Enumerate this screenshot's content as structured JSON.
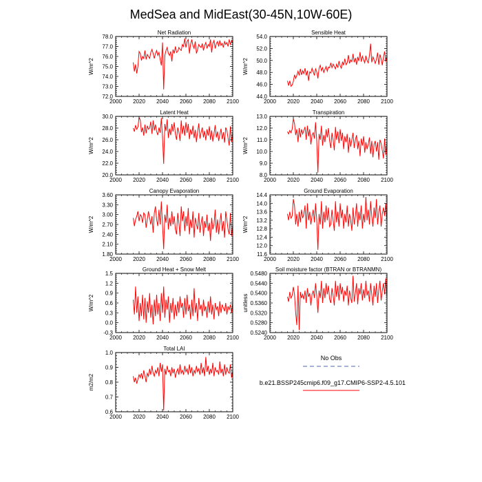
{
  "main_title": "MedSea and MidEast(30-45N,10W-60E)",
  "legend": {
    "obs_label": "No Obs",
    "obs_color": "#8899cc",
    "model_label": "b.e21.BSSP245cmip6.f09_g17.CMIP6-SSP2-4.5.101",
    "model_color": "#ff0000"
  },
  "chart_data": [
    {
      "type": "line",
      "title": "Net Radiation",
      "ylabel": "W/m^2",
      "xlim": [
        2000,
        2100
      ],
      "xticks": [
        "2000",
        "2020",
        "2040",
        "2060",
        "2080",
        "2100"
      ],
      "ylim": [
        72.0,
        78.0
      ],
      "yticks": [
        "72.0",
        "73.0",
        "74.0",
        "75.0",
        "76.0",
        "77.0",
        "78.0"
      ],
      "x_start": 2015,
      "values": [
        75.4,
        74.5,
        75.2,
        74.3,
        75.0,
        76.5,
        76.3,
        75.6,
        76.0,
        75.8,
        76.6,
        75.7,
        76.2,
        76.0,
        75.8,
        76.4,
        76.7,
        76.3,
        75.8,
        76.3,
        76.6,
        76.1,
        76.4,
        75.7,
        75.1,
        77.4,
        72.7,
        76.1,
        76.6,
        76.9,
        76.3,
        76.1,
        76.5,
        75.5,
        76.7,
        76.3,
        77.0,
        76.4,
        76.5,
        76.9,
        76.7,
        76.6,
        77.2,
        77.0,
        77.8,
        76.9,
        77.5,
        77.7,
        76.3,
        77.2,
        77.7,
        77.1,
        76.8,
        77.5,
        76.3,
        76.7,
        77.2,
        77.0,
        76.9,
        77.3,
        76.6,
        77.1,
        77.4,
        76.8,
        77.2,
        77.0,
        77.7,
        76.4,
        77.3,
        77.6,
        76.8,
        77.3,
        77.5,
        77.0,
        77.6,
        77.1,
        77.3,
        76.9,
        77.5,
        77.2,
        77.4,
        77.0,
        77.7,
        77.2,
        77.6,
        77.3
      ]
    },
    {
      "type": "line",
      "title": "Sensible Heat",
      "ylabel": "W/m^2",
      "xlim": [
        2000,
        2100
      ],
      "xticks": [
        "2000",
        "2020",
        "2040",
        "2060",
        "2080",
        "2100"
      ],
      "ylim": [
        44.0,
        54.0
      ],
      "yticks": [
        "44.0",
        "46.0",
        "48.0",
        "50.0",
        "52.0",
        "54.0"
      ],
      "x_start": 2015,
      "values": [
        46.6,
        45.8,
        46.6,
        45.7,
        45.9,
        46.5,
        47.6,
        47.0,
        47.5,
        48.2,
        47.5,
        48.6,
        47.6,
        48.3,
        47.8,
        48.7,
        47.5,
        48.3,
        46.6,
        48.1,
        47.9,
        48.7,
        48.1,
        47.5,
        48.6,
        48.1,
        47.0,
        48.7,
        49.2,
        48.3,
        48.8,
        48.0,
        48.5,
        49.0,
        48.2,
        48.9,
        48.8,
        49.6,
        48.8,
        49.4,
        49.0,
        48.6,
        49.4,
        48.8,
        49.9,
        49.1,
        48.7,
        49.8,
        49.2,
        50.3,
        49.3,
        49.6,
        50.9,
        49.5,
        50.1,
        49.8,
        51.1,
        49.7,
        50.4,
        49.3,
        50.6,
        49.9,
        51.4,
        49.8,
        50.7,
        50.1,
        49.6,
        50.8,
        50.0,
        49.6,
        50.8,
        52.8,
        49.7,
        50.6,
        50.1,
        49.5,
        50.2,
        51.3,
        49.3,
        51.0,
        50.3,
        49.2,
        50.6,
        51.5,
        49.8,
        50.9
      ]
    },
    {
      "type": "line",
      "title": "Latent Heat",
      "ylabel": "W/m^2",
      "xlim": [
        2000,
        2100
      ],
      "xticks": [
        "2000",
        "2020",
        "2040",
        "2060",
        "2080",
        "2100"
      ],
      "ylim": [
        20.0,
        30.0
      ],
      "yticks": [
        "20.0",
        "22.0",
        "24.0",
        "26.0",
        "28.0",
        "30.0"
      ],
      "x_start": 2015,
      "values": [
        28.0,
        27.4,
        28.5,
        27.8,
        28.2,
        29.8,
        29.4,
        27.3,
        28.1,
        26.7,
        28.6,
        27.1,
        28.4,
        27.8,
        28.0,
        29.1,
        27.0,
        29.3,
        27.6,
        28.6,
        27.4,
        26.8,
        28.1,
        27.2,
        29.7,
        26.5,
        21.9,
        28.7,
        27.5,
        29.5,
        26.3,
        27.9,
        26.8,
        28.7,
        27.4,
        29.0,
        27.0,
        26.0,
        28.1,
        27.3,
        25.8,
        29.3,
        27.0,
        28.4,
        26.7,
        29.0,
        27.2,
        28.7,
        26.1,
        27.8,
        26.9,
        28.4,
        26.3,
        27.7,
        25.6,
        27.4,
        28.8,
        26.2,
        27.3,
        28.1,
        26.4,
        27.5,
        25.9,
        27.8,
        26.7,
        28.3,
        26.0,
        27.6,
        25.7,
        27.0,
        28.5,
        26.4,
        27.4,
        25.8,
        26.9,
        27.9,
        26.1,
        27.3,
        25.5,
        28.1,
        27.6,
        26.3,
        25.0,
        28.3,
        25.6,
        27.4
      ]
    },
    {
      "type": "line",
      "title": "Transpiration",
      "ylabel": "W/m^2",
      "xlim": [
        2000,
        2100
      ],
      "xticks": [
        "2000",
        "2020",
        "2040",
        "2060",
        "2080",
        "2100"
      ],
      "ylim": [
        8.0,
        13.0
      ],
      "yticks": [
        "8.0",
        "9.0",
        "10.0",
        "11.0",
        "12.0",
        "13.0"
      ],
      "x_start": 2015,
      "values": [
        11.7,
        11.5,
        11.8,
        11.6,
        11.9,
        12.8,
        12.4,
        11.4,
        11.9,
        10.8,
        12.0,
        11.2,
        11.9,
        11.5,
        11.8,
        12.1,
        11.0,
        12.2,
        11.3,
        11.9,
        10.6,
        11.4,
        11.6,
        11.1,
        12.5,
        10.9,
        8.2,
        11.5,
        11.0,
        12.2,
        10.5,
        11.4,
        10.8,
        11.9,
        11.2,
        12.0,
        10.9,
        10.3,
        11.6,
        11.0,
        10.1,
        12.1,
        11.0,
        11.7,
        10.7,
        11.9,
        10.9,
        11.6,
        10.2,
        11.3,
        10.8,
        11.5,
        9.9,
        11.2,
        10.4,
        11.0,
        11.6,
        10.3,
        11.0,
        11.4,
        10.2,
        10.9,
        9.6,
        11.1,
        10.5,
        11.3,
        9.9,
        10.8,
        10.2,
        10.6,
        11.2,
        9.8,
        10.9,
        9.5,
        10.6,
        10.9,
        10.0,
        10.8,
        9.3,
        11.0,
        10.7,
        10.1,
        9.4,
        11.1,
        9.7,
        10.9
      ]
    },
    {
      "type": "line",
      "title": "Canopy Evaporation",
      "ylabel": "W/m^2",
      "xlim": [
        2000,
        2100
      ],
      "xticks": [
        "2000",
        "2020",
        "2040",
        "2060",
        "2080",
        "2100"
      ],
      "ylim": [
        1.8,
        3.6
      ],
      "yticks": [
        "1.80",
        "2.10",
        "2.40",
        "2.70",
        "3.00",
        "3.30",
        "3.60"
      ],
      "x_start": 2015,
      "values": [
        2.9,
        2.65,
        2.85,
        2.95,
        3.1,
        2.8,
        3.0,
        2.95,
        2.75,
        3.05,
        3.0,
        2.6,
        2.85,
        3.1,
        2.9,
        2.7,
        2.95,
        2.45,
        3.05,
        3.25,
        2.85,
        2.65,
        3.15,
        2.7,
        3.4,
        2.7,
        1.95,
        3.0,
        2.75,
        3.3,
        2.55,
        2.9,
        2.65,
        3.1,
        2.7,
        2.95,
        2.55,
        2.4,
        3.05,
        2.75,
        2.35,
        3.25,
        2.8,
        3.1,
        2.5,
        2.95,
        2.65,
        3.2,
        2.4,
        2.85,
        2.6,
        3.1,
        2.3,
        2.9,
        2.7,
        2.55,
        3.05,
        2.45,
        2.75,
        2.95,
        2.35,
        2.8,
        2.6,
        3.0,
        2.5,
        2.75,
        2.2,
        2.9,
        2.55,
        2.7,
        3.15,
        2.45,
        2.85,
        2.4,
        2.75,
        3.05,
        2.5,
        2.8,
        2.3,
        3.1,
        2.85,
        2.55,
        2.4,
        3.05,
        2.35,
        2.7
      ]
    },
    {
      "type": "line",
      "title": "Ground Evaporation",
      "ylabel": "W/m^2",
      "xlim": [
        2000,
        2100
      ],
      "xticks": [
        "2000",
        "2020",
        "2040",
        "2060",
        "2080",
        "2100"
      ],
      "ylim": [
        11.6,
        14.4
      ],
      "yticks": [
        "11.6",
        "12.0",
        "12.4",
        "12.8",
        "13.2",
        "13.6",
        "14.0",
        "14.4"
      ],
      "x_start": 2015,
      "values": [
        13.5,
        13.2,
        13.6,
        13.3,
        13.4,
        14.2,
        13.9,
        13.0,
        13.5,
        12.9,
        13.6,
        13.1,
        13.7,
        13.3,
        13.5,
        13.9,
        12.8,
        14.0,
        13.2,
        13.6,
        13.0,
        13.4,
        13.7,
        13.1,
        14.0,
        13.2,
        11.8,
        13.5,
        13.0,
        14.1,
        12.8,
        13.6,
        13.1,
        13.9,
        13.2,
        13.8,
        12.9,
        13.0,
        13.7,
        13.2,
        12.7,
        14.1,
        13.1,
        13.6,
        12.9,
        14.0,
        13.3,
        13.7,
        12.8,
        13.5,
        13.1,
        13.9,
        12.9,
        13.5,
        13.2,
        12.7,
        13.8,
        13.0,
        13.4,
        14.0,
        12.9,
        13.6,
        13.2,
        13.9,
        12.8,
        13.5,
        13.1,
        14.3,
        13.2,
        13.7,
        13.0,
        14.1,
        13.4,
        12.9,
        13.8,
        13.3,
        14.2,
        13.0,
        13.6,
        13.9,
        12.9,
        13.5,
        13.8,
        13.4,
        14.0,
        13.1
      ]
    },
    {
      "type": "line",
      "title": "Ground Heat + Snow Melt",
      "ylabel": "W/m^2",
      "xlim": [
        2000,
        2100
      ],
      "xticks": [
        "2000",
        "2020",
        "2040",
        "2060",
        "2080",
        "2100"
      ],
      "ylim": [
        -0.3,
        1.5
      ],
      "yticks": [
        "-0.3",
        "0.0",
        "0.3",
        "0.6",
        "0.9",
        "1.2",
        "1.5"
      ],
      "x_start": 2015,
      "values": [
        0.7,
        0.25,
        1.1,
        0.3,
        0.8,
        0.05,
        0.6,
        0.2,
        0.85,
        0.1,
        0.75,
        0.0,
        0.65,
        0.3,
        0.9,
        0.15,
        0.55,
        -0.05,
        0.7,
        0.2,
        0.85,
        0.25,
        0.6,
        0.05,
        0.9,
        0.3,
        1.1,
        0.15,
        0.7,
        0.4,
        0.8,
        0.0,
        0.6,
        0.3,
        0.75,
        0.1,
        0.55,
        0.2,
        0.65,
        0.3,
        0.8,
        0.45,
        0.6,
        0.15,
        0.75,
        0.25,
        0.85,
        0.35,
        0.55,
        0.1,
        0.7,
        0.2,
        1.05,
        0.3,
        0.6,
        0.05,
        0.75,
        0.4,
        0.55,
        0.2,
        0.7,
        0.35,
        0.5,
        0.15,
        0.65,
        0.3,
        0.8,
        0.25,
        0.55,
        0.1,
        0.6,
        0.4,
        0.5,
        0.2,
        0.65,
        0.3,
        0.55,
        0.45,
        0.35,
        0.6,
        0.25,
        0.5,
        0.4,
        0.55,
        0.3,
        0.6
      ]
    },
    {
      "type": "line",
      "title": "Soil moisture factor (BTRAN or BTRANMN)",
      "ylabel": "unitless",
      "xlim": [
        2000,
        2100
      ],
      "xticks": [
        "2000",
        "2020",
        "2040",
        "2060",
        "2080",
        "2100"
      ],
      "ylim": [
        0.524,
        0.548
      ],
      "yticks": [
        "0.5240",
        "0.5280",
        "0.5320",
        "0.5360",
        "0.5400",
        "0.5440",
        "0.5480"
      ],
      "x_start": 2015,
      "values": [
        0.5385,
        0.5365,
        0.5405,
        0.538,
        0.539,
        0.5425,
        0.5395,
        0.532,
        0.527,
        0.543,
        0.525,
        0.5405,
        0.538,
        0.5395,
        0.5375,
        0.541,
        0.536,
        0.542,
        0.5385,
        0.54,
        0.535,
        0.5395,
        0.541,
        0.538,
        0.544,
        0.539,
        0.532,
        0.541,
        0.538,
        0.545,
        0.536,
        0.542,
        0.538,
        0.544,
        0.5395,
        0.543,
        0.5375,
        0.536,
        0.542,
        0.539,
        0.535,
        0.545,
        0.5385,
        0.543,
        0.537,
        0.544,
        0.5395,
        0.5425,
        0.5365,
        0.541,
        0.539,
        0.543,
        0.535,
        0.541,
        0.538,
        0.536,
        0.547,
        0.5365,
        0.54,
        0.544,
        0.5355,
        0.542,
        0.5395,
        0.544,
        0.537,
        0.5415,
        0.538,
        0.545,
        0.539,
        0.541,
        0.5365,
        0.544,
        0.5395,
        0.535,
        0.543,
        0.5385,
        0.544,
        0.536,
        0.5415,
        0.545,
        0.537,
        0.541,
        0.544,
        0.5395,
        0.546,
        0.538
      ]
    },
    {
      "type": "line",
      "title": "Total LAI",
      "ylabel": "m2/m2",
      "xlim": [
        2000,
        2100
      ],
      "xticks": [
        "2000",
        "2020",
        "2040",
        "2060",
        "2080",
        "2100"
      ],
      "ylim": [
        0.6,
        1.0
      ],
      "yticks": [
        "0.6",
        "0.7",
        "0.8",
        "0.9",
        "1.0"
      ],
      "x_start": 2015,
      "values": [
        0.84,
        0.8,
        0.83,
        0.79,
        0.82,
        0.85,
        0.83,
        0.86,
        0.82,
        0.88,
        0.84,
        0.8,
        0.86,
        0.84,
        0.89,
        0.85,
        0.91,
        0.86,
        0.84,
        0.88,
        0.86,
        0.9,
        0.84,
        0.93,
        0.87,
        0.92,
        0.61,
        0.89,
        0.85,
        0.91,
        0.87,
        0.88,
        0.84,
        0.9,
        0.86,
        0.89,
        0.83,
        0.87,
        0.89,
        0.85,
        0.92,
        0.86,
        0.88,
        0.85,
        0.91,
        0.87,
        0.89,
        0.85,
        0.92,
        0.86,
        0.9,
        0.84,
        0.88,
        0.86,
        0.91,
        0.87,
        0.89,
        0.85,
        0.93,
        0.86,
        0.9,
        0.84,
        0.97,
        0.87,
        0.91,
        0.85,
        0.89,
        0.86,
        0.93,
        0.84,
        0.9,
        0.87,
        0.88,
        0.85,
        0.94,
        0.86,
        0.89,
        0.84,
        0.92,
        0.85,
        0.9,
        0.87,
        0.86,
        0.92,
        0.83,
        0.88
      ]
    }
  ]
}
